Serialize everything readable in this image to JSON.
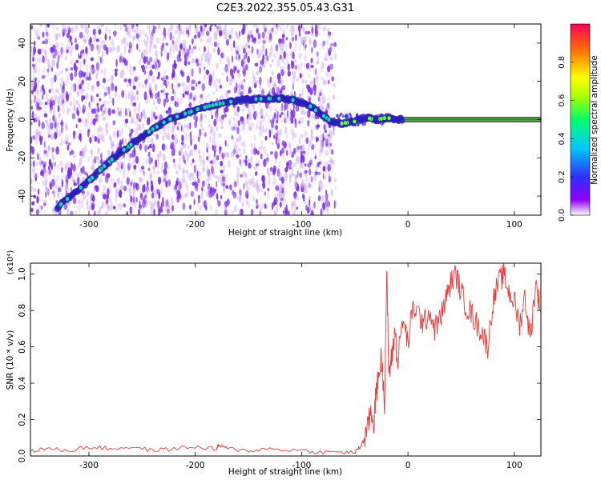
{
  "title": "C2E3.2022.355.05.43.G31",
  "colors": {
    "snr_line": "#e83a3a",
    "track_core": "#1fd3c8",
    "noise": "#7a2de6",
    "noise_light": "#c9a3f5",
    "reference_line": "#e8213a"
  },
  "chart_data": [
    {
      "type": "heatmap",
      "name": "spectrogram",
      "xlabel": "Height of straight line (km)",
      "ylabel": "Frequency (Hz)",
      "xlim": [
        -355,
        125
      ],
      "ylim": [
        -50,
        50
      ],
      "xticks": [
        -300,
        -200,
        -100,
        0,
        100
      ],
      "yticks": [
        -40,
        -20,
        0,
        20,
        40
      ],
      "noise_extent_x": [
        -355,
        -68
      ],
      "track": {
        "x": [
          -330,
          -315,
          -300,
          -285,
          -270,
          -255,
          -240,
          -225,
          -210,
          -195,
          -180,
          -165,
          -150,
          -135,
          -120,
          -105,
          -92,
          -82,
          -72,
          -62,
          -50,
          -40,
          -30,
          -20,
          -10,
          0,
          125
        ],
        "y": [
          -46,
          -39,
          -32,
          -24,
          -17,
          -11,
          -5,
          0,
          3,
          6,
          8,
          9.5,
          10.5,
          11,
          11,
          10,
          7,
          3,
          -1,
          -2,
          -1,
          1,
          0,
          1,
          0,
          0,
          0
        ]
      },
      "reference_line": {
        "from_x": -30,
        "to_x": 125,
        "y": 0
      },
      "colorbar": {
        "label": "Normalized spectral amplitude",
        "ticks": [
          "0.0",
          "0.2",
          "0.4",
          "0.6",
          "0.8"
        ],
        "range": [
          0,
          1
        ]
      }
    },
    {
      "type": "line",
      "name": "snr",
      "xlabel": "Height of straight line (km)",
      "ylabel": "SNR (10 * v/v)",
      "scale_label": "(x10⁴)",
      "xlim": [
        -355,
        125
      ],
      "ylim": [
        0,
        1.06
      ],
      "xticks": [
        -300,
        -200,
        -100,
        0,
        100
      ],
      "yticks": [
        "0.0",
        "0.2",
        "0.4",
        "0.6",
        "0.8",
        "1.0"
      ],
      "series": [
        {
          "x": [
            -355,
            -340,
            -320,
            -300,
            -280,
            -260,
            -240,
            -220,
            -200,
            -180,
            -178,
            -170,
            -150,
            -130,
            -100,
            -80,
            -60,
            -50,
            -45,
            -42,
            -38,
            -35,
            -32,
            -30,
            -28,
            -25,
            -22,
            -20,
            -18,
            -15,
            -12,
            -10,
            -5,
            0,
            5,
            10,
            15,
            20,
            25,
            30,
            35,
            40,
            45,
            50,
            55,
            60,
            65,
            70,
            75,
            80,
            85,
            90,
            95,
            100,
            105,
            110,
            115,
            120,
            125
          ],
          "y": [
            0.03,
            0.04,
            0.03,
            0.05,
            0.04,
            0.05,
            0.03,
            0.04,
            0.05,
            0.04,
            0.06,
            0.04,
            0.03,
            0.04,
            0.03,
            0.02,
            0.02,
            0.02,
            0.05,
            0.08,
            0.15,
            0.25,
            0.18,
            0.35,
            0.42,
            0.55,
            0.3,
            1.02,
            0.45,
            0.55,
            0.7,
            0.5,
            0.75,
            0.62,
            0.82,
            0.78,
            0.72,
            0.8,
            0.7,
            0.75,
            0.85,
            0.95,
            1.0,
            0.9,
            0.82,
            0.78,
            0.72,
            0.68,
            0.6,
            0.85,
            0.95,
            1.0,
            0.9,
            0.85,
            0.72,
            0.88,
            0.64,
            0.95,
            0.8
          ]
        }
      ]
    }
  ]
}
